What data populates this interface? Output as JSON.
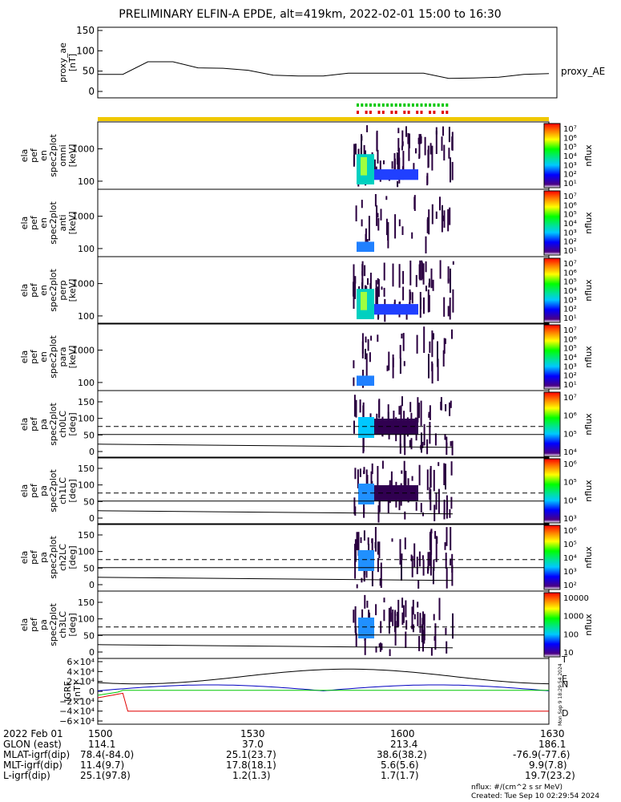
{
  "title": "PRELIMINARY ELFIN-A EPDE, alt=419km, 2022-02-01 15:00 to 16:30",
  "colors": {
    "proxy_line": "#000000",
    "status_bar": "#f0c800",
    "fgm_green": "#00c800",
    "fgm_red": "#e00000",
    "sci_zone_red": "#e00000"
  },
  "proxy_panel": {
    "ylabel_lines": [
      "proxy_ae",
      "[nT]"
    ],
    "yticks": [
      "150",
      "100",
      "50",
      "0"
    ],
    "legend": "proxy_AE",
    "x_minutes": [
      0,
      5,
      10,
      15,
      20,
      25,
      30,
      35,
      40,
      45,
      50,
      55,
      60,
      65,
      70,
      75,
      80,
      85,
      90
    ],
    "values": [
      42,
      42,
      73,
      73,
      58,
      57,
      52,
      40,
      38,
      38,
      45,
      45,
      45,
      45,
      32,
      33,
      35,
      42,
      44
    ],
    "ylim": [
      0,
      150
    ]
  },
  "energy_panels": [
    {
      "ylabel_lines": [
        "ela",
        "pef",
        "en",
        "spec2plot",
        "omni",
        "[keV]"
      ],
      "yticks": [
        "1000",
        "100"
      ],
      "cbar_label": "nflux"
    },
    {
      "ylabel_lines": [
        "ela",
        "pef",
        "en",
        "spec2plot",
        "anti",
        "[keV]"
      ],
      "yticks": [
        "1000",
        "100"
      ],
      "cbar_label": "nflux"
    },
    {
      "ylabel_lines": [
        "ela",
        "pef",
        "en",
        "spec2plot",
        "perp",
        "[keV]"
      ],
      "yticks": [
        "1000",
        "100"
      ],
      "cbar_label": "nflux"
    },
    {
      "ylabel_lines": [
        "ela",
        "pef",
        "en",
        "spec2plot",
        "para",
        "[keV]"
      ],
      "yticks": [
        "1000",
        "100"
      ],
      "cbar_label": "nflux"
    }
  ],
  "energy_cbar_ticks": [
    "10⁷",
    "10⁶",
    "10⁵",
    "10⁴",
    "10³",
    "10²",
    "10¹"
  ],
  "pa_panels": [
    {
      "ylabel_lines": [
        "ela",
        "pef",
        "pa",
        "spec2plot",
        "ch0LC",
        "[deg]"
      ],
      "yticks": [
        "150",
        "100",
        "50",
        "0"
      ],
      "cbar_label": "nflux",
      "cbar_ticks": [
        "10⁷",
        "10⁶",
        "10⁵",
        "10⁴"
      ]
    },
    {
      "ylabel_lines": [
        "ela",
        "pef",
        "pa",
        "spec2plot",
        "ch1LC",
        "[deg]"
      ],
      "yticks": [
        "150",
        "100",
        "50",
        "0"
      ],
      "cbar_label": "nflux",
      "cbar_ticks": [
        "10⁶",
        "10⁵",
        "10⁴",
        "10³"
      ]
    },
    {
      "ylabel_lines": [
        "ela",
        "pef",
        "pa",
        "spec2plot",
        "ch2LC",
        "[deg]"
      ],
      "yticks": [
        "150",
        "100",
        "50",
        "0"
      ],
      "cbar_label": "nflux",
      "cbar_ticks": [
        "10⁶",
        "10⁵",
        "10⁴",
        "10³",
        "10²"
      ]
    },
    {
      "ylabel_lines": [
        "ela",
        "pef",
        "pa",
        "spec2plot",
        "ch3LC",
        "[deg]"
      ],
      "yticks": [
        "150",
        "100",
        "50",
        "0"
      ],
      "cbar_label": "nflux",
      "cbar_ticks": [
        "10000",
        "1000",
        "100",
        "10"
      ]
    }
  ],
  "igrf_panel": {
    "ylabel_lines": [
      "IGRF",
      "[nT]"
    ],
    "yticks": [
      "6×10⁴",
      "4×10⁴",
      "2×10⁴",
      "0",
      "−2×10⁴",
      "−4×10⁴",
      "−6×10⁴"
    ],
    "legend": [
      "T",
      "E",
      "N",
      "D"
    ],
    "ylim": [
      -60000,
      60000
    ]
  },
  "footer": {
    "rows": [
      {
        "label": "2022 Feb 01",
        "values": [
          "1500",
          "1530",
          "1600",
          "1630"
        ]
      },
      {
        "label": "GLON (east)",
        "values": [
          "114.1",
          "37.0",
          "213.4",
          "186.1"
        ]
      },
      {
        "label": "MLAT-igrf(dip)",
        "values": [
          "78.4(-84.0)",
          "25.1(23.7)",
          "38.6(38.2)",
          "-76.9(-77.6)"
        ]
      },
      {
        "label": "MLT-igrf(dip)",
        "values": [
          "11.4(9.7)",
          "17.8(18.1)",
          "5.6(5.6)",
          "9.9(7.8)"
        ]
      },
      {
        "label": "L-igrf(dip)",
        "values": [
          "25.1(97.8)",
          "1.2(1.3)",
          "1.7(1.7)",
          "19.7(23.2)"
        ]
      }
    ],
    "units_note": "nflux: #/(cm^2 s sr MeV)",
    "created": "Created: Tue Sep 10 02:29:54 2024",
    "side_stamp": "Mon Sep 9 18:29:54 2024"
  }
}
